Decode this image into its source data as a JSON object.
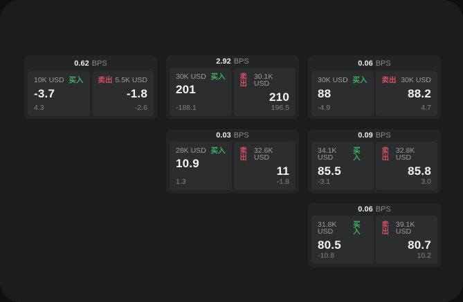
{
  "theme": {
    "page_bg": "#0e0f10",
    "window_bg": "#1b1c1d",
    "card_bg": "#232425",
    "panel_bg": "#2c2d2e",
    "buy_color": "#3fae5f",
    "sell_color": "#cf4f63",
    "text_primary": "#f4f4f4",
    "text_muted": "#9c9d9e"
  },
  "labels": {
    "bps_unit": "BPS",
    "buy": "买入",
    "sell": "卖出"
  },
  "cards": [
    {
      "row": 1,
      "col": 1,
      "bps": "0.62",
      "buy": {
        "size": "10K USD",
        "value": "-3.7",
        "sub": "4.3"
      },
      "sell": {
        "size": "5.5K USD",
        "value": "-1.8",
        "sub": "-2.6"
      }
    },
    {
      "row": 1,
      "col": 2,
      "bps": "2.92",
      "buy": {
        "size": "30K USD",
        "value": "201",
        "sub": "-188.1"
      },
      "sell": {
        "size": "30.1K USD",
        "value": "210",
        "sub": "196.5"
      }
    },
    {
      "row": 1,
      "col": 3,
      "bps": "0.06",
      "buy": {
        "size": "30K USD",
        "value": "88",
        "sub": "-4.9"
      },
      "sell": {
        "size": "30K USD",
        "value": "88.2",
        "sub": "4.7"
      }
    },
    {
      "row": 2,
      "col": 2,
      "bps": "0.03",
      "buy": {
        "size": "28K USD",
        "value": "10.9",
        "sub": "1.3"
      },
      "sell": {
        "size": "32.6K USD",
        "value": "11",
        "sub": "-1.8"
      }
    },
    {
      "row": 2,
      "col": 3,
      "bps": "0.09",
      "buy": {
        "size": "34.1K USD",
        "value": "85.5",
        "sub": "-3.1"
      },
      "sell": {
        "size": "32.8K USD",
        "value": "85.8",
        "sub": "3.0"
      }
    },
    {
      "row": 3,
      "col": 3,
      "bps": "0.06",
      "buy": {
        "size": "31.8K USD",
        "value": "80.5",
        "sub": "-10.8"
      },
      "sell": {
        "size": "39.1K USD",
        "value": "80.7",
        "sub": "10.2"
      }
    }
  ]
}
